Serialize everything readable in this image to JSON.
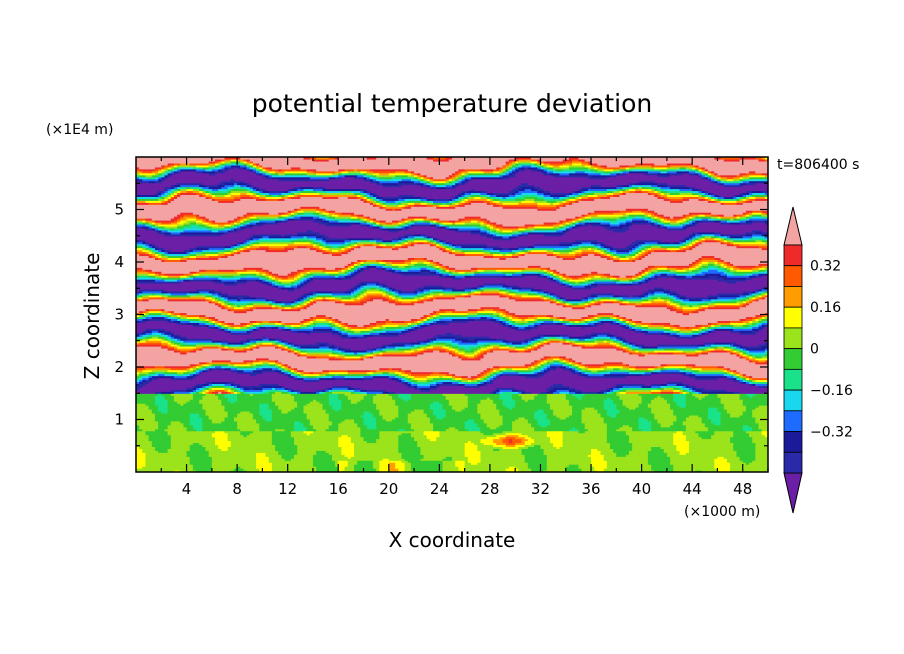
{
  "chart_data": {
    "type": "heatmap",
    "title": "potential temperature deviation",
    "time_label": "t=806400 s",
    "xlabel": "X coordinate",
    "ylabel": "Z coordinate",
    "x_unit": "(×1000 m)",
    "y_unit": "(×1E4 m)",
    "xlim": [
      0,
      50
    ],
    "ylim": [
      0,
      6
    ],
    "x_ticks": [
      4,
      8,
      12,
      16,
      20,
      24,
      28,
      32,
      36,
      40,
      44,
      48
    ],
    "y_ticks": [
      1,
      2,
      3,
      4,
      5
    ],
    "colorbar": {
      "levels": [
        -0.48,
        -0.4,
        -0.32,
        -0.24,
        -0.16,
        -0.08,
        0,
        0.08,
        0.16,
        0.24,
        0.32,
        0.4
      ],
      "colors": [
        "#6a1fa6",
        "#2a2aa8",
        "#1a1a9a",
        "#1e6cff",
        "#18d7ee",
        "#19e28a",
        "#33cc33",
        "#9be31a",
        "#ffff00",
        "#ff9c00",
        "#ff5a00",
        "#ee2a2a",
        "#f4a3a3"
      ],
      "tick_labels": [
        "0.32",
        "0.16",
        "0",
        "−0.16",
        "−0.32"
      ],
      "extend": "both"
    },
    "layers": [
      {
        "z_from": 0.0,
        "z_to": 0.8,
        "dominant": 0.02
      },
      {
        "z_from": 0.8,
        "z_to": 1.5,
        "dominant": 0.0
      },
      {
        "z_from": 1.5,
        "z_to": 4.4,
        "dominant": "alternating bands"
      },
      {
        "z_from": 4.4,
        "z_to": 6.0,
        "dominant": "alternating bands"
      }
    ]
  }
}
